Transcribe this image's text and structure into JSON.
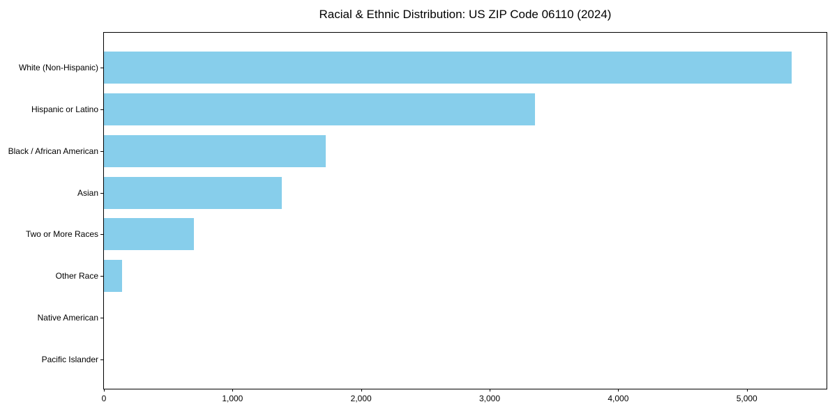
{
  "chart_data": {
    "type": "bar",
    "orientation": "horizontal",
    "title": "Racial & Ethnic Distribution: US ZIP Code 06110 (2024)",
    "categories": [
      "White (Non-Hispanic)",
      "Hispanic or Latino",
      "Black / African American",
      "Asian",
      "Two or More Races",
      "Other Race",
      "Native American",
      "Pacific Islander"
    ],
    "values": [
      5350,
      3350,
      1725,
      1385,
      700,
      140,
      0,
      0
    ],
    "xlabel": "",
    "ylabel": "",
    "xlim": [
      0,
      5620
    ],
    "xticks": [
      0,
      1000,
      2000,
      3000,
      4000,
      5000
    ],
    "xtick_labels": [
      "0",
      "1,000",
      "2,000",
      "3,000",
      "4,000",
      "5,000"
    ],
    "bar_color": "#87CEEB",
    "grid": false,
    "legend_position": "none"
  }
}
